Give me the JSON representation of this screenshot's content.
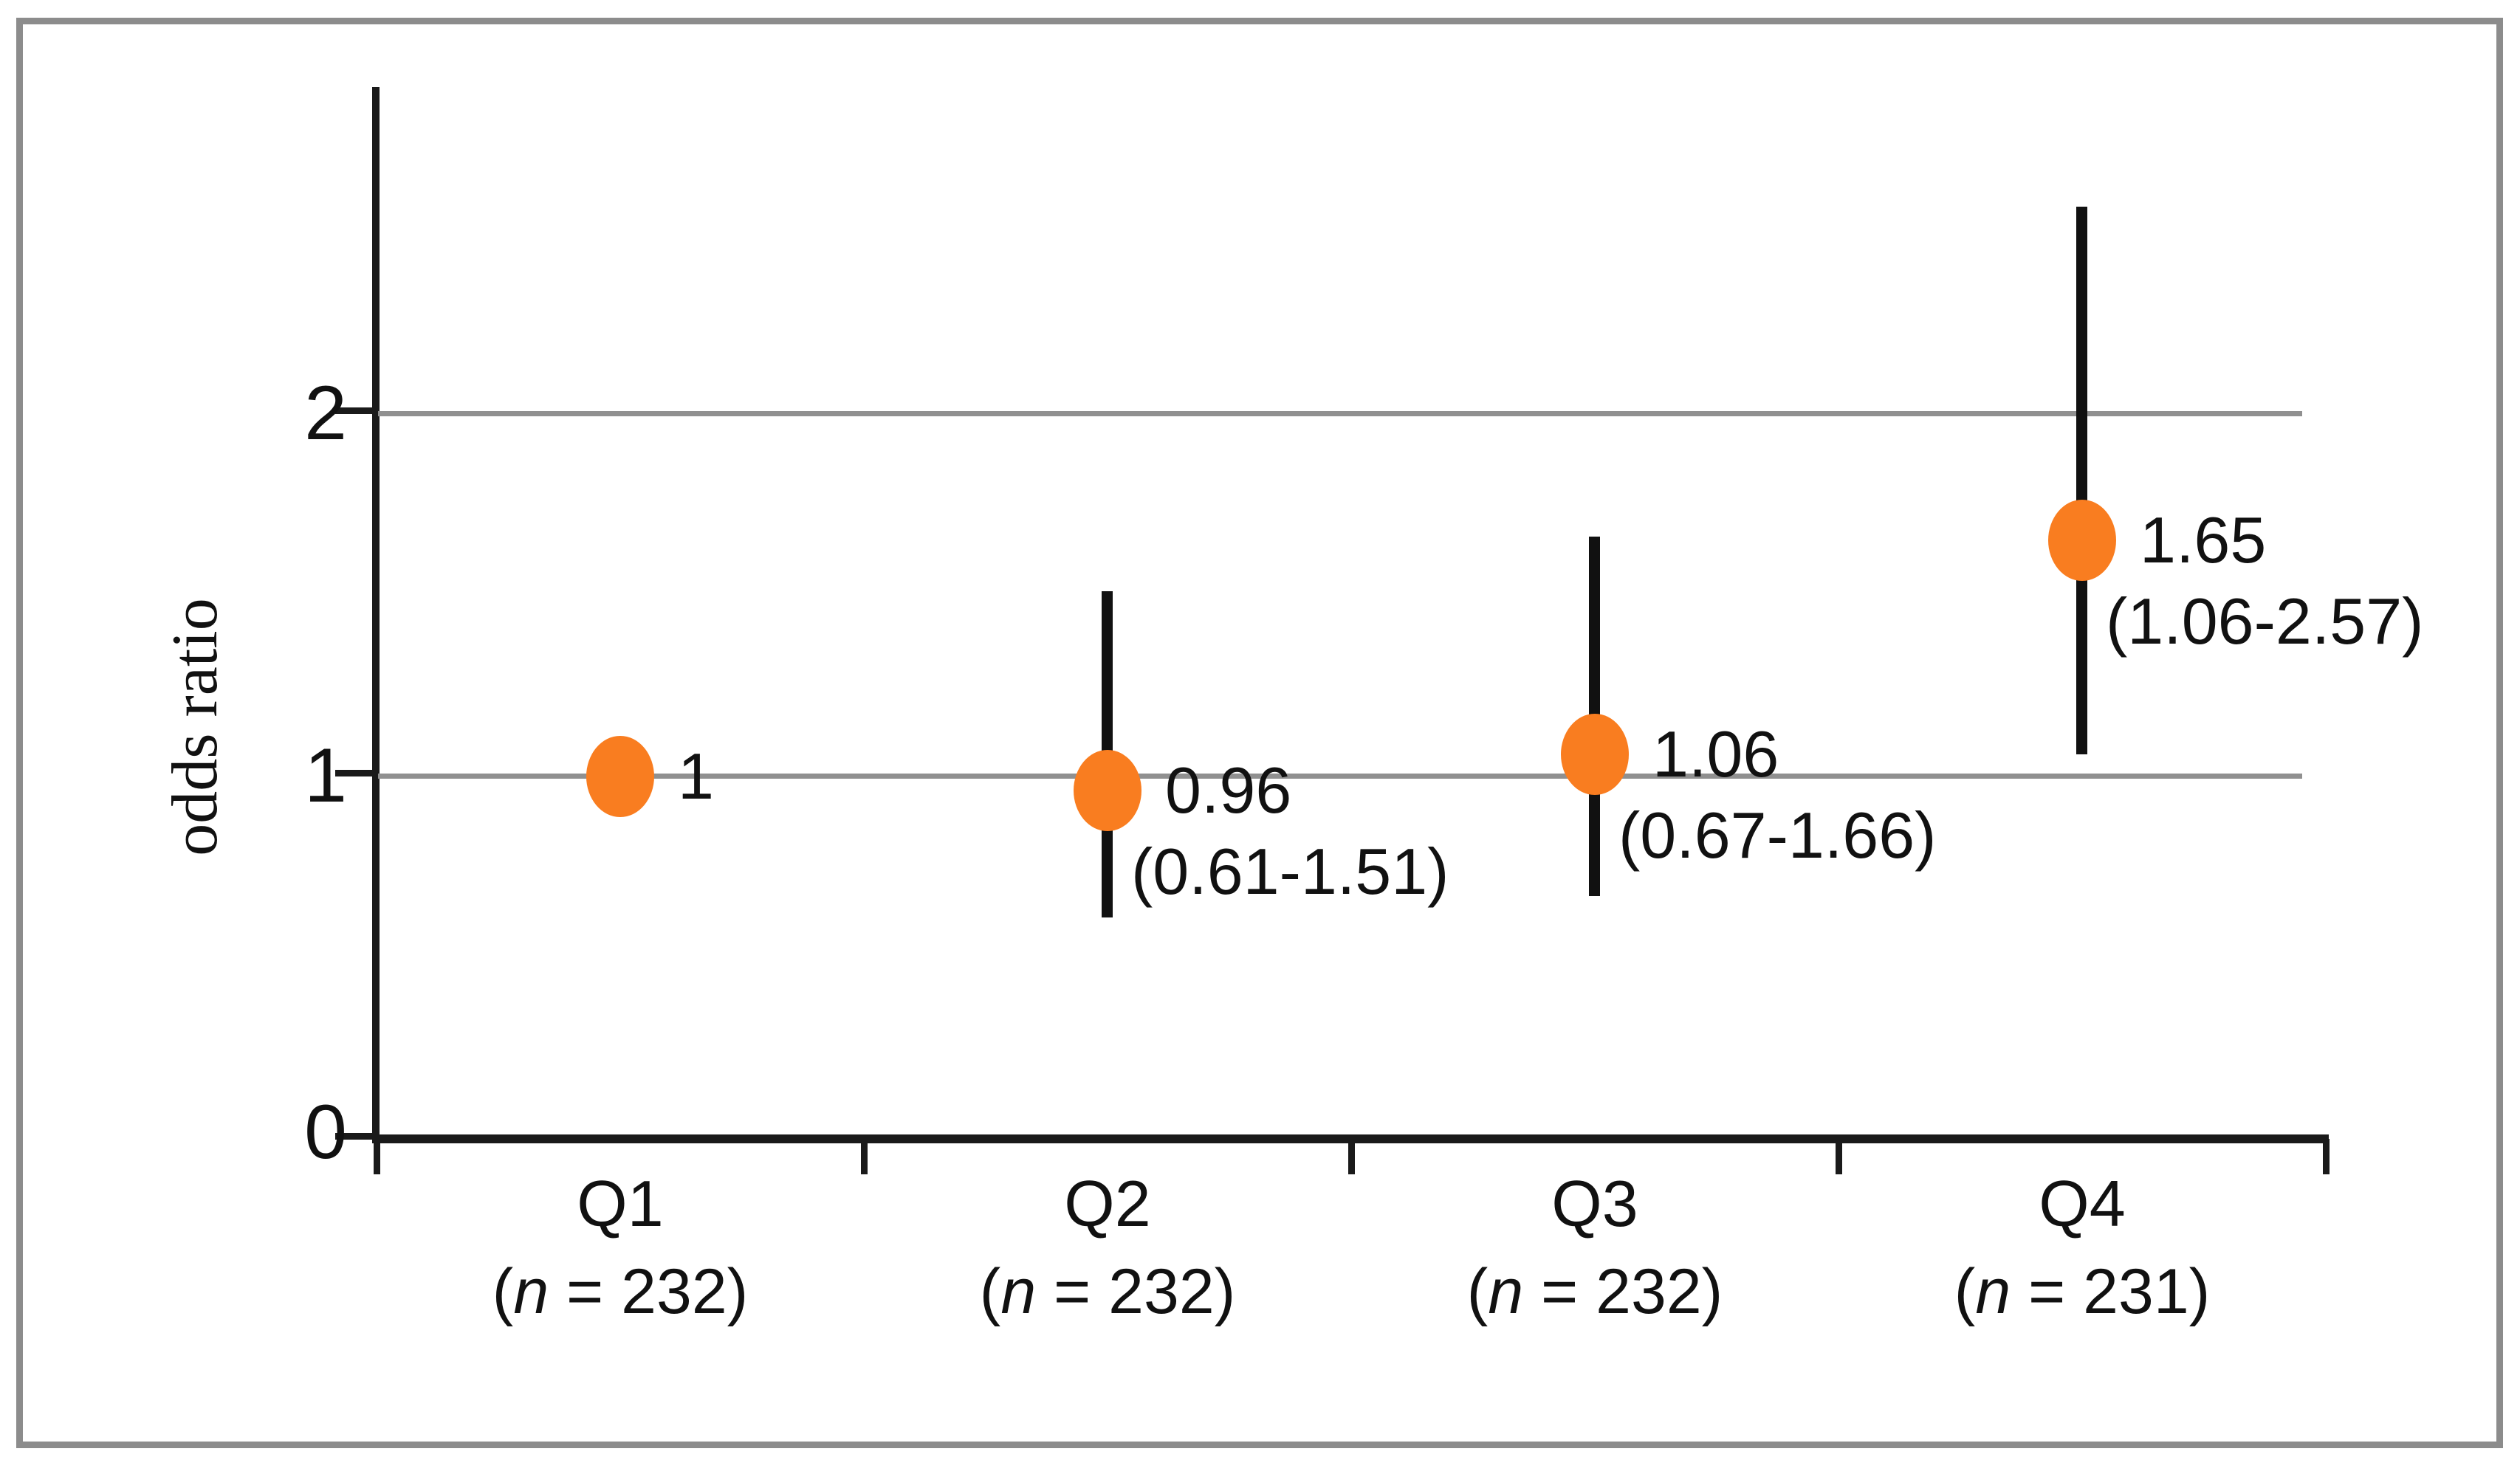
{
  "figure": {
    "background": "#ffffff",
    "border_color": "#8c8c8c",
    "text_color": "#111111"
  },
  "chart_data": {
    "type": "scatter",
    "variant": "odds-ratio-forest-plot",
    "title": "",
    "xlabel": "",
    "ylabel": "odds ratio",
    "categories": [
      "Q1",
      "Q2",
      "Q3",
      "Q4"
    ],
    "n": [
      232,
      232,
      232,
      231
    ],
    "odds_ratios": [
      1,
      0.96,
      1.06,
      1.65
    ],
    "ci_low": [
      null,
      0.61,
      0.67,
      1.06
    ],
    "ci_high": [
      null,
      1.51,
      1.66,
      2.57
    ],
    "or_labels": [
      "1",
      "0.96",
      "1.06",
      "1.65"
    ],
    "ci_labels": [
      "",
      "(0.61-1.51)",
      "(0.67-1.66)",
      "(1.06-2.57)"
    ],
    "n_label_parts": {
      "open": "(",
      "symbol": "n",
      "equals": " = ",
      "close": ")"
    },
    "yticks": [
      0,
      1,
      2
    ],
    "ytick_labels": [
      "0",
      "1",
      "2"
    ],
    "ylim": [
      0,
      2.9
    ],
    "gridlines_at": [
      1,
      2
    ],
    "grid": "horizontal-only",
    "legend": "none",
    "marker_color": "#f97d20",
    "errorbar_color": "#111111",
    "gridline_color": "#909090",
    "axis_color": "#1a1a1a"
  }
}
